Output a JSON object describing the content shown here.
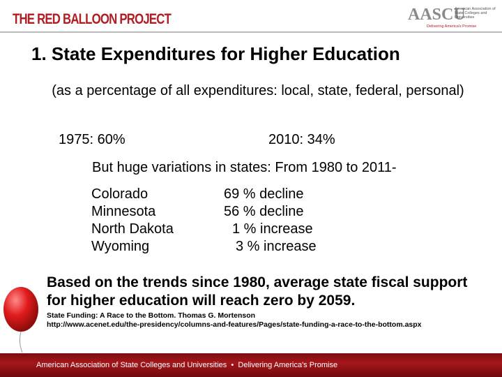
{
  "header": {
    "logo": "THE RED BALLOON PROJECT",
    "org_logo": "AASCU",
    "org_name": "American Association of State Colleges and Universities",
    "org_tagline": "Delivering America's Promise"
  },
  "title": "1.  State Expenditures for Higher Education",
  "subtitle": "(as a percentage of all expenditures: local, state, federal, personal)",
  "stats": [
    "1975:  60%",
    "2010:  34%"
  ],
  "intro": "But huge variations in states:  From 1980 to 2011-",
  "states": [
    [
      "Colorado",
      "69 % decline"
    ],
    [
      "Minnesota",
      "56 % decline"
    ],
    [
      "North Dakota",
      "1 % increase"
    ],
    [
      "Wyoming",
      "3 % increase"
    ]
  ],
  "conclusion": "Based on the trends since 1980, average state fiscal support for higher education will reach zero by 2059.",
  "citation": {
    "source": "State Funding: A Race to the Bottom.  Thomas G. Mortenson",
    "url": "http://www.acenet.edu/the-presidency/columns-and-features/Pages/state-funding-a-race-to-the-bottom.aspx"
  },
  "footer": "American Association of State Colleges and Universities  •  Delivering America's Promise"
}
